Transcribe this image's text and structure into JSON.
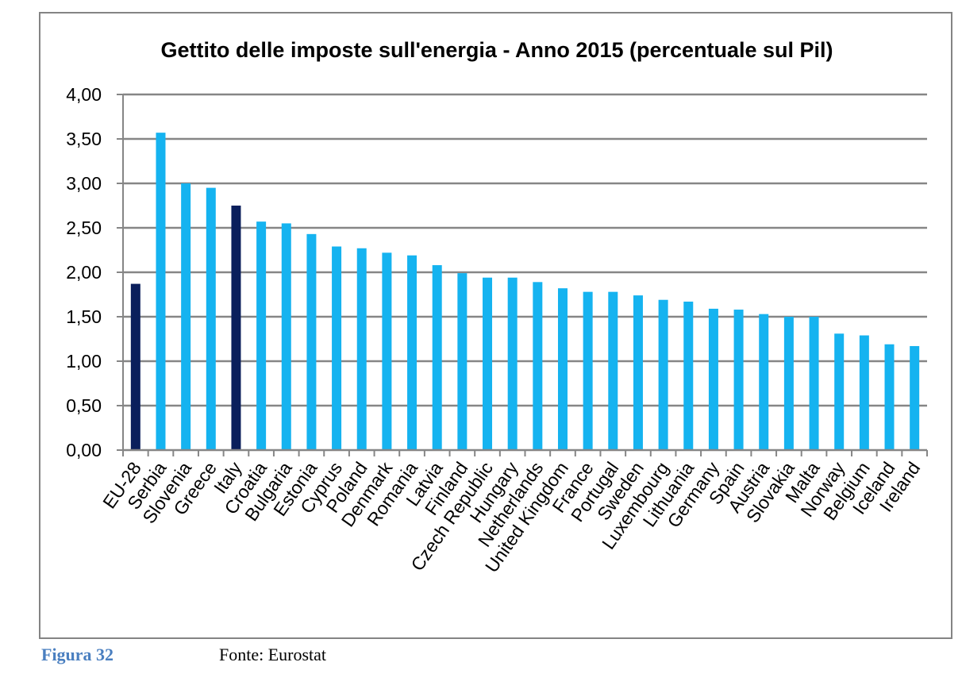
{
  "chart_data": {
    "type": "bar",
    "title": "Gettito delle imposte sull'energia - Anno 2015 (percentuale sul Pil)",
    "xlabel": "",
    "ylabel": "",
    "ylim": [
      0,
      4
    ],
    "yticks": [
      "0,00",
      "0,50",
      "1,00",
      "1,50",
      "2,00",
      "2,50",
      "3,00",
      "3,50",
      "4,00"
    ],
    "ytick_values": [
      0,
      0.5,
      1,
      1.5,
      2,
      2.5,
      3,
      3.5,
      4
    ],
    "grid": "horizontal",
    "legend": "none",
    "categories": [
      "EU-28",
      "Serbia",
      "Slovenia",
      "Greece",
      "Italy",
      "Croatia",
      "Bulgaria",
      "Estonia",
      "Cyprus",
      "Poland",
      "Denmark",
      "Romania",
      "Latvia",
      "Finland",
      "Czech Republic",
      "Hungary",
      "Netherlands",
      "United Kingdom",
      "France",
      "Portugal",
      "Sweden",
      "Luxembourg",
      "Lithuania",
      "Germany",
      "Spain",
      "Austria",
      "Slovakia",
      "Malta",
      "Norway",
      "Belgium",
      "Iceland",
      "Ireland"
    ],
    "values": [
      1.87,
      3.57,
      3.0,
      2.95,
      2.75,
      2.57,
      2.55,
      2.43,
      2.29,
      2.27,
      2.22,
      2.19,
      2.08,
      1.99,
      1.94,
      1.94,
      1.89,
      1.82,
      1.78,
      1.78,
      1.74,
      1.69,
      1.67,
      1.59,
      1.58,
      1.53,
      1.5,
      1.5,
      1.31,
      1.29,
      1.19,
      1.17
    ],
    "highlighted": [
      "EU-28",
      "Italy"
    ]
  },
  "colors": {
    "bar": "#15b3f0",
    "highlight": "#0a1f5c",
    "grid": "#868686",
    "axis": "#868686",
    "frame": "#848484",
    "caption_figure": "#4a7fc0"
  },
  "caption": {
    "figure": "Figura 32",
    "source": "Fonte: Eurostat"
  }
}
